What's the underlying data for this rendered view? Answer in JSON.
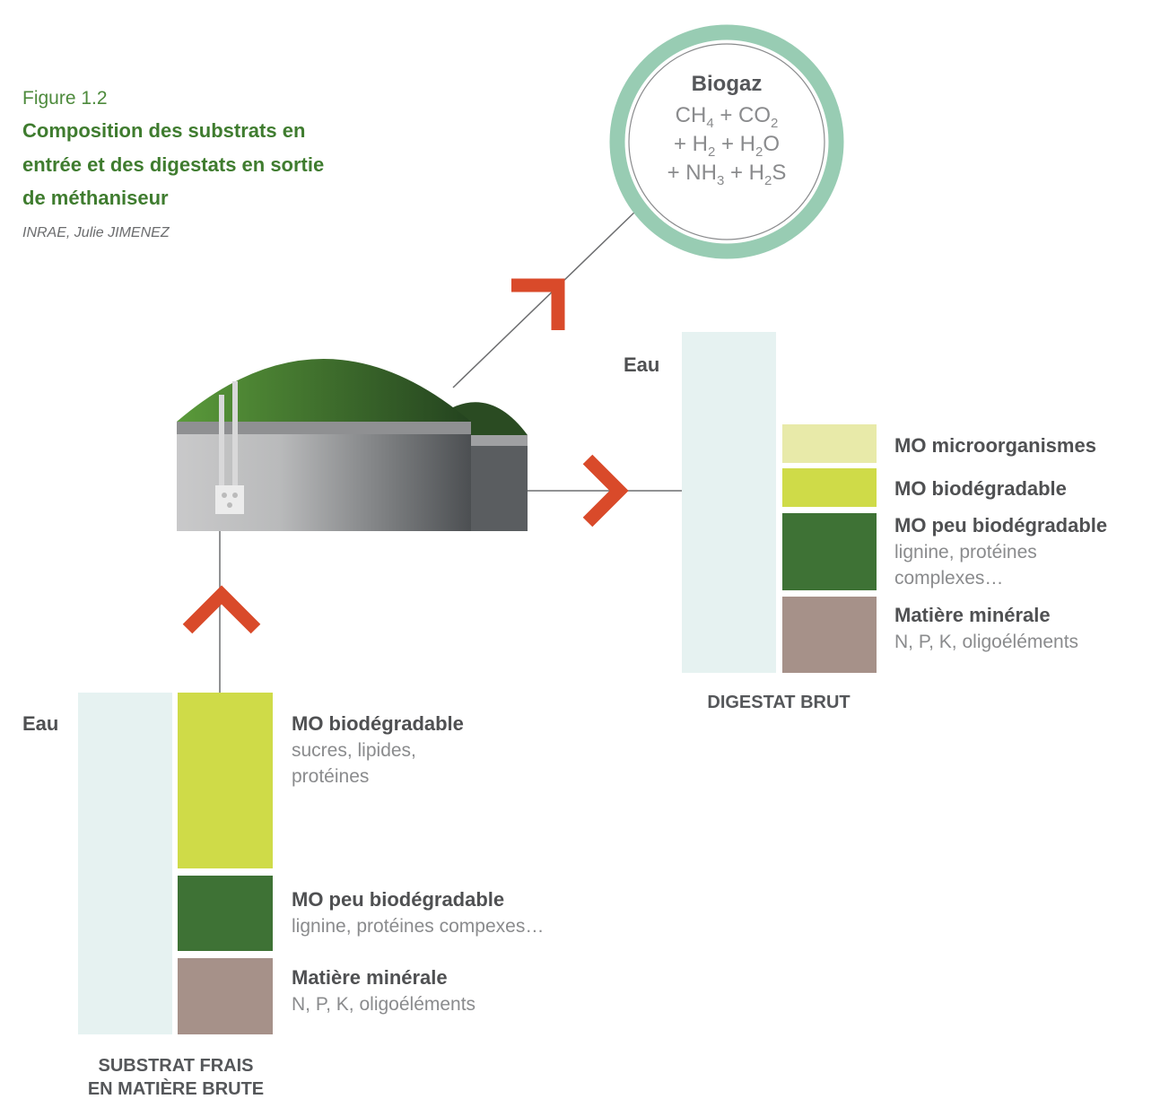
{
  "header": {
    "figure": "Figure 1.2",
    "title_lines": [
      "Composition des substrats en",
      "entrée et des digestats en sortie",
      "de méthaniseur"
    ],
    "credit": "INRAE, Julie JIMENEZ"
  },
  "biogas": {
    "title": "Biogaz",
    "formula_lines": [
      [
        "CH",
        "4",
        " + CO",
        "2"
      ],
      [
        "+ H",
        "2",
        " + H",
        "2",
        "O"
      ],
      [
        "+ NH",
        "3",
        " + H",
        "2",
        "S"
      ]
    ]
  },
  "digestat": {
    "water_label": "Eau",
    "caption": "DIGESTAT BRUT",
    "components": [
      {
        "label": "MO microorganismes",
        "detail_lines": []
      },
      {
        "label": "MO biodégradable",
        "detail_lines": []
      },
      {
        "label": "MO peu biodégradable",
        "detail_lines": [
          "lignine, protéines",
          "complexes…"
        ]
      },
      {
        "label": "Matière minérale",
        "detail_lines": [
          "N, P, K, oligoéléments"
        ]
      }
    ]
  },
  "substrat": {
    "water_label": "Eau",
    "caption_lines": [
      "SUBSTRAT FRAIS",
      "EN MATIÈRE BRUTE"
    ],
    "components": [
      {
        "label": "MO biodégradable",
        "detail_lines": [
          "sucres, lipides,",
          "protéines"
        ]
      },
      {
        "label": "MO peu biodégradable",
        "detail_lines": [
          "lignine, protéines compexes…"
        ]
      },
      {
        "label": "Matière minérale",
        "detail_lines": [
          "N, P, K, oligoéléments"
        ]
      }
    ]
  }
}
